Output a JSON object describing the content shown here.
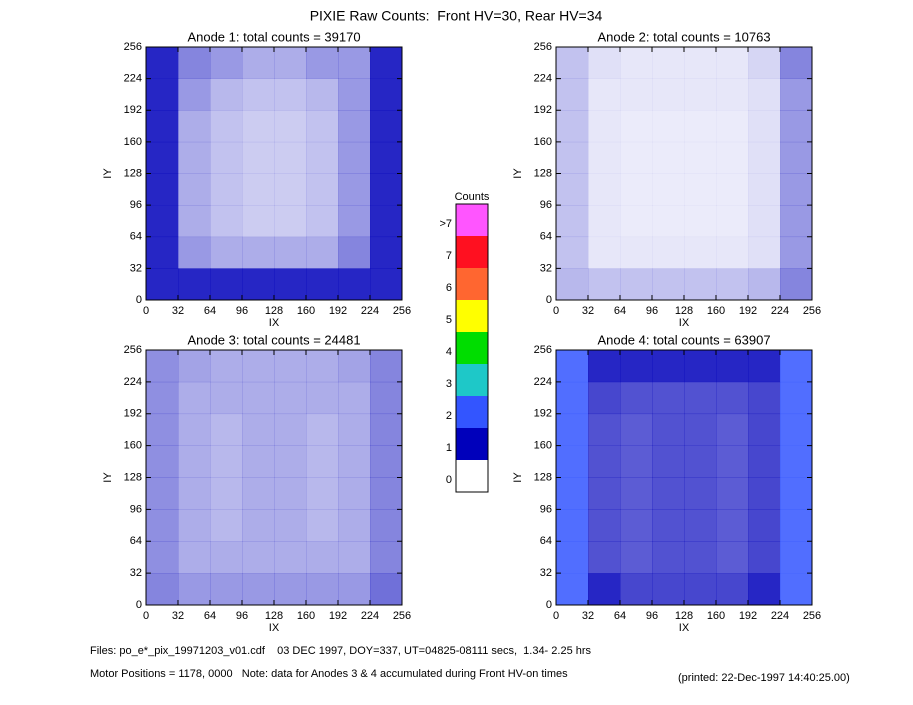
{
  "title": "PIXIE Raw Counts:  Front HV=30, Rear HV=34",
  "chart_data": [
    {
      "type": "heatmap",
      "title": "Anode 1: total counts = 39170",
      "xlabel": "IX",
      "ylabel": "IY",
      "xlim": [
        0,
        256
      ],
      "ylim": [
        0,
        256
      ],
      "xticks": [
        0,
        32,
        64,
        96,
        128,
        160,
        192,
        224,
        256
      ],
      "yticks": [
        0,
        32,
        64,
        96,
        128,
        160,
        192,
        224,
        256
      ],
      "values": [
        [
          1.6,
          1.0,
          1.0,
          1.0,
          1.0,
          1.0,
          1.0,
          1.4
        ],
        [
          1.4,
          0.5,
          0.4,
          0.4,
          0.4,
          0.4,
          0.6,
          1.3
        ],
        [
          1.3,
          0.4,
          0.3,
          0.25,
          0.25,
          0.3,
          0.5,
          1.2
        ],
        [
          1.3,
          0.4,
          0.3,
          0.25,
          0.25,
          0.3,
          0.5,
          1.2
        ],
        [
          1.3,
          0.4,
          0.3,
          0.25,
          0.25,
          0.3,
          0.5,
          1.2
        ],
        [
          1.3,
          0.4,
          0.3,
          0.25,
          0.25,
          0.3,
          0.5,
          1.2
        ],
        [
          1.3,
          0.5,
          0.35,
          0.3,
          0.3,
          0.35,
          0.5,
          1.1
        ],
        [
          1.5,
          0.6,
          0.5,
          0.4,
          0.4,
          0.5,
          0.5,
          1.3
        ]
      ]
    },
    {
      "type": "heatmap",
      "title": "Anode 2: total counts = 10763",
      "xlabel": "IX",
      "ylabel": "IY",
      "xlim": [
        0,
        256
      ],
      "ylim": [
        0,
        256
      ],
      "xticks": [
        0,
        32,
        64,
        96,
        128,
        160,
        192,
        224,
        256
      ],
      "yticks": [
        0,
        32,
        64,
        96,
        128,
        160,
        192,
        224,
        256
      ],
      "values": [
        [
          0.35,
          0.3,
          0.3,
          0.3,
          0.3,
          0.3,
          0.35,
          0.6
        ],
        [
          0.3,
          0.12,
          0.12,
          0.12,
          0.12,
          0.12,
          0.15,
          0.5
        ],
        [
          0.3,
          0.12,
          0.1,
          0.1,
          0.1,
          0.1,
          0.15,
          0.5
        ],
        [
          0.3,
          0.12,
          0.1,
          0.1,
          0.1,
          0.1,
          0.15,
          0.5
        ],
        [
          0.3,
          0.12,
          0.1,
          0.1,
          0.1,
          0.1,
          0.15,
          0.5
        ],
        [
          0.3,
          0.12,
          0.1,
          0.1,
          0.1,
          0.1,
          0.15,
          0.5
        ],
        [
          0.3,
          0.12,
          0.12,
          0.12,
          0.12,
          0.12,
          0.15,
          0.5
        ],
        [
          0.3,
          0.15,
          0.12,
          0.12,
          0.12,
          0.12,
          0.2,
          0.6
        ]
      ]
    },
    {
      "type": "heatmap",
      "title": "Anode 3: total counts = 24481",
      "xlabel": "IX",
      "ylabel": "IY",
      "xlim": [
        0,
        256
      ],
      "ylim": [
        0,
        256
      ],
      "xticks": [
        0,
        32,
        64,
        96,
        128,
        160,
        192,
        224,
        256
      ],
      "yticks": [
        0,
        32,
        64,
        96,
        128,
        160,
        192,
        224,
        256
      ],
      "values": [
        [
          0.6,
          0.5,
          0.5,
          0.5,
          0.5,
          0.5,
          0.5,
          0.7
        ],
        [
          0.55,
          0.4,
          0.4,
          0.4,
          0.4,
          0.4,
          0.4,
          0.6
        ],
        [
          0.55,
          0.4,
          0.35,
          0.4,
          0.4,
          0.35,
          0.4,
          0.6
        ],
        [
          0.55,
          0.4,
          0.35,
          0.4,
          0.4,
          0.35,
          0.4,
          0.6
        ],
        [
          0.55,
          0.4,
          0.35,
          0.4,
          0.4,
          0.35,
          0.4,
          0.6
        ],
        [
          0.55,
          0.4,
          0.35,
          0.4,
          0.4,
          0.35,
          0.4,
          0.6
        ],
        [
          0.55,
          0.4,
          0.4,
          0.4,
          0.4,
          0.4,
          0.4,
          0.6
        ],
        [
          0.55,
          0.45,
          0.4,
          0.4,
          0.4,
          0.4,
          0.45,
          0.6
        ]
      ]
    },
    {
      "type": "heatmap",
      "title": "Anode 4: total counts = 63907",
      "xlabel": "IX",
      "ylabel": "IY",
      "xlim": [
        0,
        256
      ],
      "ylim": [
        0,
        256
      ],
      "xticks": [
        0,
        32,
        64,
        96,
        128,
        160,
        192,
        224,
        256
      ],
      "yticks": [
        0,
        32,
        64,
        96,
        128,
        160,
        192,
        224,
        256
      ],
      "values": [
        [
          2.2,
          1.0,
          0.9,
          0.9,
          0.9,
          0.9,
          1.0,
          2.0
        ],
        [
          2.2,
          0.85,
          0.8,
          0.85,
          0.85,
          0.8,
          0.9,
          2.0
        ],
        [
          2.2,
          0.85,
          0.8,
          0.85,
          0.85,
          0.8,
          0.9,
          2.0
        ],
        [
          2.2,
          0.85,
          0.8,
          0.85,
          0.85,
          0.8,
          0.9,
          2.0
        ],
        [
          2.2,
          0.85,
          0.8,
          0.85,
          0.85,
          0.8,
          0.9,
          2.0
        ],
        [
          2.2,
          0.85,
          0.8,
          0.85,
          0.85,
          0.8,
          0.9,
          2.0
        ],
        [
          2.2,
          0.9,
          0.85,
          0.85,
          0.85,
          0.85,
          0.9,
          2.0
        ],
        [
          2.4,
          1.2,
          1.1,
          1.1,
          1.1,
          1.1,
          1.2,
          2.2
        ]
      ]
    }
  ],
  "colorbar": {
    "title": "Counts",
    "levels": [
      {
        "label": "0",
        "color": "#ffffff"
      },
      {
        "label": "1",
        "color": "#0000bb"
      },
      {
        "label": "2",
        "color": "#3355ff"
      },
      {
        "label": "3",
        "color": "#1ec8c8"
      },
      {
        "label": "4",
        "color": "#00dd00"
      },
      {
        "label": "5",
        "color": "#ffff00"
      },
      {
        "label": "6",
        "color": "#ff6630"
      },
      {
        "label": "7",
        "color": "#ff1020"
      },
      {
        "label": ">7",
        "color": "#ff55ff"
      }
    ]
  },
  "footer": {
    "files": "Files: po_e*_pix_19971203_v01.cdf    03 DEC 1997, DOY=337, UT=04825-08111 secs,  1.34- 2.25 hrs",
    "motor": "Motor Positions = 1178, 0000   Note: data for Anodes 3 & 4 accumulated during Front HV-on times",
    "printed": "(printed: 22-Dec-1997 14:40:25.00)"
  }
}
